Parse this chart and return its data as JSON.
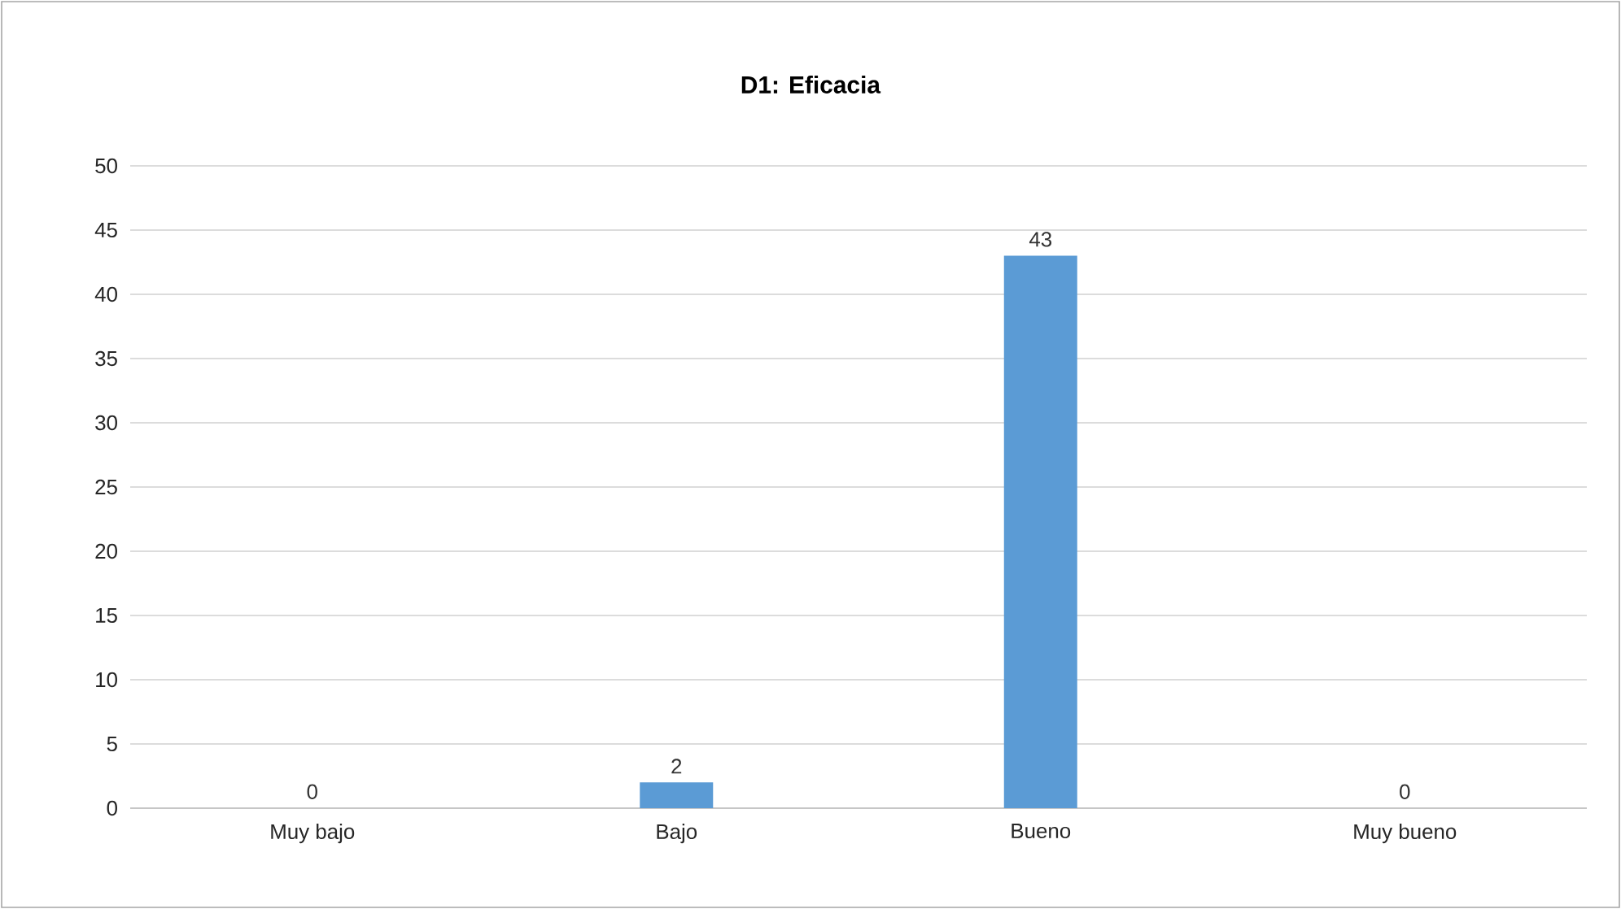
{
  "chart_data": {
    "type": "bar",
    "title": "**D1: Eficacia**",
    "categories": [
      "Muy bajo",
      "Bajo",
      "Bueno",
      "Muy bueno"
    ],
    "values": [
      0,
      2,
      43,
      0
    ],
    "color": "#5b9bd5",
    "ylim": [
      0,
      50
    ],
    "yticks": [
      0,
      5,
      10,
      15,
      20,
      25,
      30,
      35,
      40,
      45,
      50
    ],
    "grid": "y",
    "data_labels": true
  }
}
